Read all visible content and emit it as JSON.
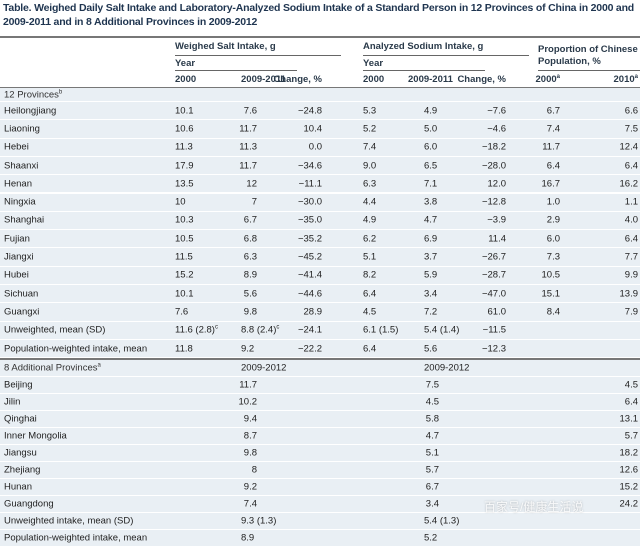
{
  "title": "Table. Weighed Daily Salt Intake and Laboratory-Analyzed Sodium Intake of a Standard Person in 12 Provinces of China in 2000 and 2009-2011 and in 8 Additional Provinces in 2009-2012",
  "header": {
    "salt_group": "Weighed Salt Intake, g",
    "sodium_group": "Analyzed Sodium Intake, g",
    "pop_group": "Proportion of Chinese Population, %",
    "year": "Year",
    "y2000": "2000",
    "y2009": "2009-2011",
    "change": "Change, %",
    "p2000": "2000",
    "p2010": "2010",
    "p_sup": "a"
  },
  "section1": {
    "label": "12 Provinces",
    "sup": "b"
  },
  "rows1": [
    [
      "Heilongjiang",
      "10.1",
      "7.6",
      "−24.8",
      "5.3",
      "4.9",
      "−7.6",
      "6.7",
      "6.6"
    ],
    [
      "Liaoning",
      "10.6",
      "11.7",
      "10.4",
      "5.2",
      "5.0",
      "−4.6",
      "7.4",
      "7.5"
    ],
    [
      "Hebei",
      "11.3",
      "11.3",
      "0.0",
      "7.4",
      "6.0",
      "−18.2",
      "11.7",
      "12.4"
    ],
    [
      "Shaanxi",
      "17.9",
      "11.7",
      "−34.6",
      "9.0",
      "6.5",
      "−28.0",
      "6.4",
      "6.4"
    ],
    [
      "Henan",
      "13.5",
      "12",
      "−11.1",
      "6.3",
      "7.1",
      "12.0",
      "16.7",
      "16.2"
    ],
    [
      "Ningxia",
      "10",
      "7",
      "−30.0",
      "4.4",
      "3.8",
      "−12.8",
      "1.0",
      "1.1"
    ],
    [
      "Shanghai",
      "10.3",
      "6.7",
      "−35.0",
      "4.9",
      "4.7",
      "−3.9",
      "2.9",
      "4.0"
    ],
    [
      "Fujian",
      "10.5",
      "6.8",
      "−35.2",
      "6.2",
      "6.9",
      "11.4",
      "6.0",
      "6.4"
    ],
    [
      "Jiangxi",
      "11.5",
      "6.3",
      "−45.2",
      "5.1",
      "3.7",
      "−26.7",
      "7.3",
      "7.7"
    ],
    [
      "Hubei",
      "15.2",
      "8.9",
      "−41.4",
      "8.2",
      "5.9",
      "−28.7",
      "10.5",
      "9.9"
    ],
    [
      "Sichuan",
      "10.1",
      "5.6",
      "−44.6",
      "6.4",
      "3.4",
      "−47.0",
      "15.1",
      "13.9"
    ],
    [
      "Guangxi",
      "7.6",
      "9.8",
      "28.9",
      "4.5",
      "7.2",
      "61.0",
      "8.4",
      "7.9"
    ]
  ],
  "unweighted1": {
    "label": "Unweighted, mean (SD)",
    "s2000": "11.6 (2.8)",
    "s2009": "8.8 (2.4)",
    "sup": "c",
    "schange": "−24.1",
    "n2000": "6.1 (1.5)",
    "n2009": "5.4 (1.4)",
    "nchange": "−11.5"
  },
  "popweighted1": {
    "label": "Population-weighted intake, mean",
    "s2000": "11.8",
    "s2009": "9.2",
    "schange": "−22.2",
    "n2000": "6.4",
    "n2009": "5.6",
    "nchange": "−12.3"
  },
  "section2": {
    "label": "8 Additional Provinces",
    "sup": "a",
    "salt_year": "2009-2012",
    "sodium_year": "2009-2012"
  },
  "rows2": [
    [
      "Beijing",
      "11.7",
      "7.5",
      "4.5"
    ],
    [
      "Jilin",
      "10.2",
      "4.5",
      "6.4"
    ],
    [
      "Qinghai",
      "9.4",
      "5.8",
      "13.1"
    ],
    [
      "Inner Mongolia",
      "8.7",
      "4.7",
      "5.7"
    ],
    [
      "Jiangsu",
      "9.8",
      "5.1",
      "18.2"
    ],
    [
      "Zhejiang",
      "8",
      "5.7",
      "12.6"
    ],
    [
      "Hunan",
      "9.2",
      "6.7",
      "15.2"
    ],
    [
      "Guangdong",
      "7.4",
      "3.4",
      "24.2"
    ]
  ],
  "unweighted2": {
    "label": "Unweighted intake, mean (SD)",
    "salt": "9.3 (1.3)",
    "sodium": "5.4 (1.3)"
  },
  "popweighted2": {
    "label": "Population-weighted intake, mean",
    "salt": "8.9",
    "sodium": "5.2"
  },
  "watermark": "百家号/健康生活说"
}
